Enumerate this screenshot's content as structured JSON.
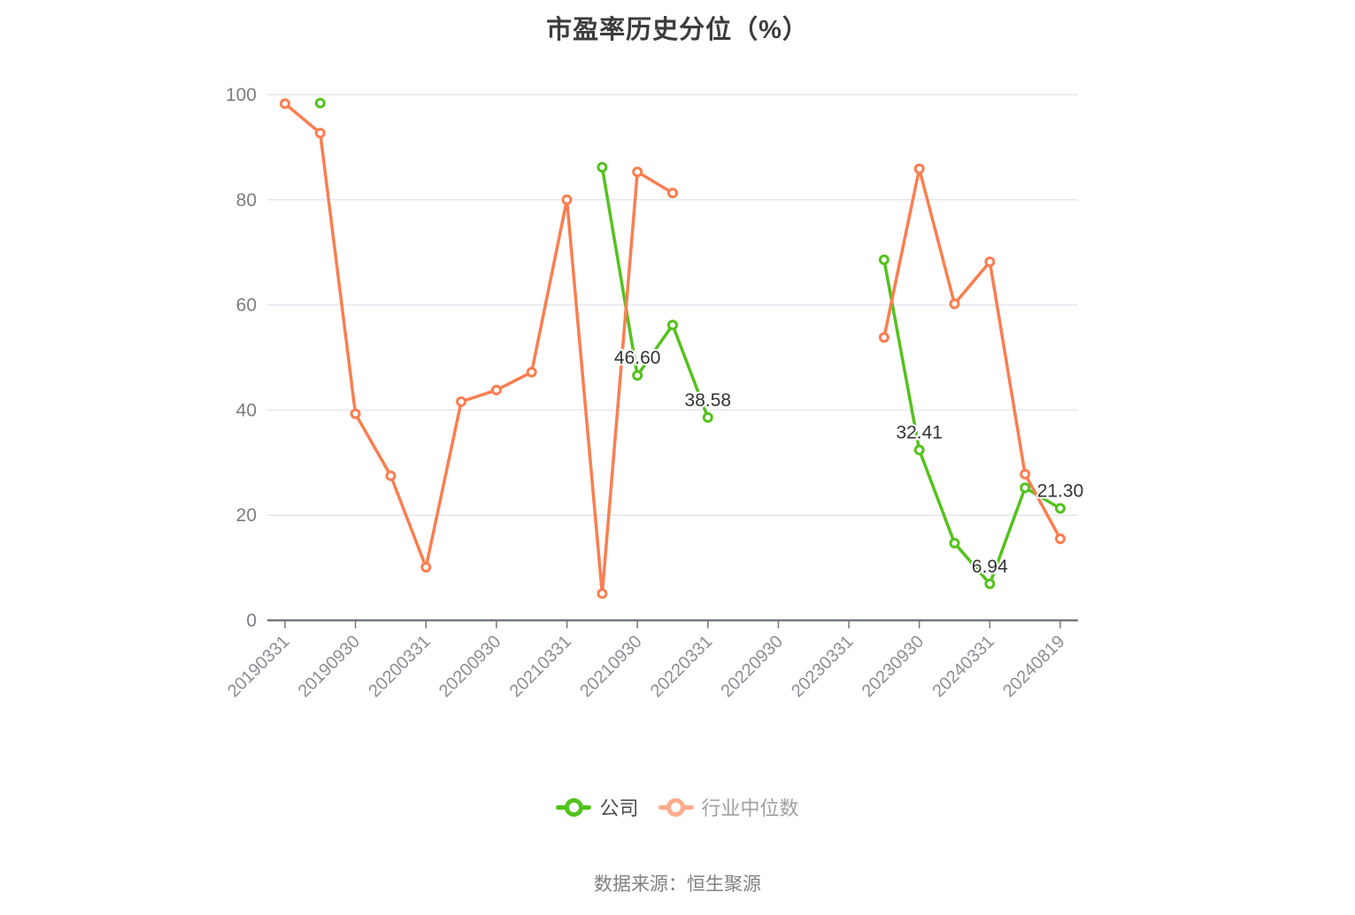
{
  "title": "市盈率历史分位（%）",
  "source": "数据来源：恒生聚源",
  "legend": {
    "items": [
      {
        "label": "公司",
        "marker_color": "#54c21d",
        "text_color": "#4d4d4d"
      },
      {
        "label": "行业中位数",
        "marker_color": "#ffab8c",
        "text_color": "#a0a0a0"
      }
    ]
  },
  "chart_data": {
    "type": "line",
    "title": "市盈率历史分位（%）",
    "x_axis": {
      "tick_labels": [
        "20190331",
        "20190930",
        "20200331",
        "20200930",
        "20210331",
        "20210930",
        "20220331",
        "20220930",
        "20230331",
        "20230930",
        "20240331",
        "20240819"
      ],
      "points_per_tick": 2,
      "note": "series x values are quarter indices; q=0 is 20190331, ticks fall on even q"
    },
    "ylim": [
      0,
      100
    ],
    "y_ticks": [
      0,
      20,
      40,
      60,
      80,
      100
    ],
    "grid": true,
    "legend_position": "bottom",
    "colors": {
      "grid": "#e4e7f0",
      "axis": "#74787d",
      "y_label": "#7a7d82",
      "x_label": "#8b8e93",
      "annotation": "#333333"
    },
    "series": [
      {
        "id": "company",
        "name": "公司",
        "color": "#54c21d",
        "points": [
          [
            1,
            98.4
          ],
          [
            9,
            86.2
          ],
          [
            10,
            46.6
          ],
          [
            11,
            56.2
          ],
          [
            12,
            38.58
          ],
          [
            17,
            68.6
          ],
          [
            18,
            32.41
          ],
          [
            19,
            14.7
          ],
          [
            20,
            6.94
          ],
          [
            21,
            25.2
          ],
          [
            22,
            21.3
          ]
        ]
      },
      {
        "id": "industry-median",
        "name": "行业中位数",
        "color": "#fa7e50",
        "points": [
          [
            0,
            98.3
          ],
          [
            1,
            92.7
          ],
          [
            2,
            39.3
          ],
          [
            3,
            27.5
          ],
          [
            4,
            10.1
          ],
          [
            5,
            41.6
          ],
          [
            6,
            43.8
          ],
          [
            7,
            47.2
          ],
          [
            8,
            80
          ],
          [
            9,
            5.1
          ],
          [
            10,
            85.3
          ],
          [
            11,
            81.3
          ],
          [
            17,
            53.8
          ],
          [
            18,
            85.9
          ],
          [
            19,
            60.2
          ],
          [
            20,
            68.2
          ],
          [
            21,
            27.8
          ],
          [
            22,
            15.5
          ]
        ]
      }
    ],
    "annotations": [
      {
        "q": 10,
        "text": "46.60"
      },
      {
        "q": 12,
        "text": "38.58"
      },
      {
        "q": 18,
        "text": "32.41"
      },
      {
        "q": 20,
        "text": "6.94"
      },
      {
        "q": 22,
        "text": "21.30"
      }
    ]
  }
}
